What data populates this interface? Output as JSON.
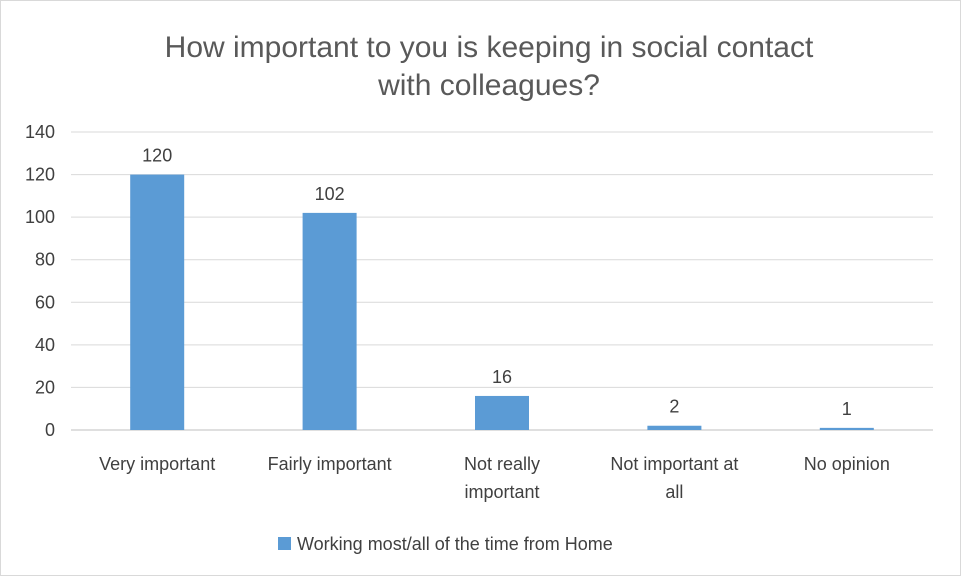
{
  "chart_data": {
    "type": "bar",
    "title_lines": [
      "How important to you is keeping in social contact",
      "with colleagues?"
    ],
    "categories": [
      [
        "Very important"
      ],
      [
        "Fairly important"
      ],
      [
        "Not really",
        "important"
      ],
      [
        "Not important at",
        "all"
      ],
      [
        "No opinion"
      ]
    ],
    "series": [
      {
        "name": "Working most/all of the time from Home",
        "values": [
          120,
          102,
          16,
          2,
          1
        ],
        "color": "#5b9bd5"
      }
    ],
    "ylim": [
      0,
      140
    ],
    "yticks": [
      0,
      20,
      40,
      60,
      80,
      100,
      120,
      140
    ],
    "grid": true,
    "legend_position": "bottom",
    "data_labels": true
  }
}
